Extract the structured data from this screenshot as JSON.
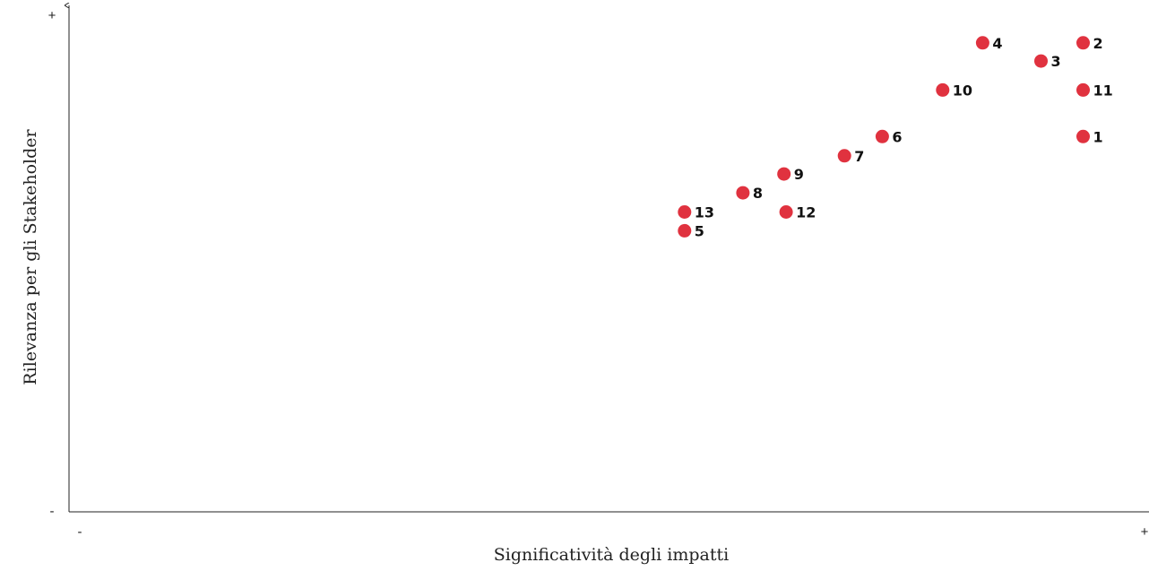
{
  "chart_data": {
    "type": "scatter",
    "title": "",
    "xlabel": "Significatività degli impatti",
    "ylabel": "Rilevanza per gli Stakeholder",
    "x_min_label": "-",
    "x_max_label": "+",
    "y_min_label": "-",
    "y_max_label": "+",
    "xlim": [
      0,
      1
    ],
    "ylim": [
      0,
      1
    ],
    "grid": false,
    "marker_color": "#e0323f",
    "points": [
      {
        "label": "1",
        "x": 0.939,
        "y": 0.741
      },
      {
        "label": "2",
        "x": 0.939,
        "y": 0.926
      },
      {
        "label": "3",
        "x": 0.9,
        "y": 0.89
      },
      {
        "label": "4",
        "x": 0.846,
        "y": 0.926
      },
      {
        "label": "5",
        "x": 0.57,
        "y": 0.555
      },
      {
        "label": "6",
        "x": 0.753,
        "y": 0.741
      },
      {
        "label": "7",
        "x": 0.718,
        "y": 0.703
      },
      {
        "label": "8",
        "x": 0.624,
        "y": 0.63
      },
      {
        "label": "9",
        "x": 0.662,
        "y": 0.667
      },
      {
        "label": "10",
        "x": 0.809,
        "y": 0.833
      },
      {
        "label": "11",
        "x": 0.939,
        "y": 0.833
      },
      {
        "label": "12",
        "x": 0.664,
        "y": 0.592
      },
      {
        "label": "13",
        "x": 0.57,
        "y": 0.592
      }
    ]
  }
}
